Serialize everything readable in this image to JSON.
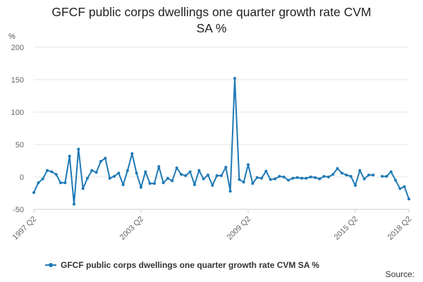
{
  "chart_data": {
    "type": "line",
    "title_lines": [
      "GFCF public corps dwellings one quarter growth rate CVM",
      "SA %"
    ],
    "ylabel": "%",
    "ylim": [
      -50,
      200
    ],
    "yticks": [
      -50,
      0,
      50,
      100,
      150,
      200
    ],
    "grid": true,
    "legend": "bottom",
    "color": "#1f7ab6",
    "categories": [
      "1997 Q2",
      "1997 Q3",
      "1997 Q4",
      "1998 Q1",
      "1998 Q2",
      "1998 Q3",
      "1998 Q4",
      "1999 Q1",
      "1999 Q2",
      "1999 Q3",
      "1999 Q4",
      "2000 Q1",
      "2000 Q2",
      "2000 Q3",
      "2000 Q4",
      "2001 Q1",
      "2001 Q2",
      "2001 Q3",
      "2001 Q4",
      "2002 Q1",
      "2002 Q2",
      "2002 Q3",
      "2002 Q4",
      "2003 Q1",
      "2003 Q2",
      "2003 Q3",
      "2003 Q4",
      "2004 Q1",
      "2004 Q2",
      "2004 Q3",
      "2004 Q4",
      "2005 Q1",
      "2005 Q2",
      "2005 Q3",
      "2005 Q4",
      "2006 Q1",
      "2006 Q2",
      "2006 Q3",
      "2006 Q4",
      "2007 Q1",
      "2007 Q2",
      "2007 Q3",
      "2007 Q4",
      "2008 Q1",
      "2008 Q2",
      "2008 Q3",
      "2008 Q4",
      "2009 Q1",
      "2009 Q2",
      "2009 Q3",
      "2009 Q4",
      "2010 Q1",
      "2010 Q2",
      "2010 Q3",
      "2010 Q4",
      "2011 Q1",
      "2011 Q2",
      "2011 Q3",
      "2011 Q4",
      "2012 Q1",
      "2012 Q2",
      "2012 Q3",
      "2012 Q4",
      "2013 Q1",
      "2013 Q2",
      "2013 Q3",
      "2013 Q4",
      "2014 Q1",
      "2014 Q2",
      "2014 Q3",
      "2014 Q4",
      "2015 Q1",
      "2015 Q2",
      "2015 Q3",
      "2015 Q4",
      "2016 Q1",
      "2016 Q2",
      "2016 Q3",
      "2016 Q4",
      "2017 Q1",
      "2017 Q2",
      "2017 Q3",
      "2017 Q4",
      "2018 Q1",
      "2018 Q2"
    ],
    "xtick_labels": [
      "1997 Q2",
      "2003 Q2",
      "2009 Q2",
      "2015 Q2",
      "2018 Q2"
    ],
    "series": [
      {
        "name": "GFCF public corps dwellings one quarter growth rate CVM SA %",
        "values": [
          -24,
          -9,
          -3,
          10,
          8,
          4,
          -9,
          -9,
          32,
          -42,
          43,
          -18,
          -2,
          10,
          7,
          24,
          29,
          -2,
          1,
          6,
          -12,
          10,
          36,
          6,
          -16,
          8,
          -10,
          -10,
          16,
          -9,
          -2,
          -6,
          14,
          4,
          2,
          8,
          -12,
          10,
          -3,
          3,
          -13,
          2,
          2,
          15,
          -22,
          152,
          -4,
          -8,
          19,
          -10,
          -1,
          -2,
          9,
          -4,
          -3,
          1,
          0,
          -5,
          -2,
          -1,
          -2,
          -2,
          0,
          -1,
          -3,
          1,
          0,
          4,
          13,
          6,
          3,
          1,
          -13,
          10,
          -3,
          3,
          3,
          null,
          1,
          1,
          8,
          -5,
          -18,
          -15,
          -34
        ]
      }
    ]
  },
  "legend": {
    "label": "GFCF public corps dwellings one quarter growth rate CVM SA %"
  },
  "source_label": "Source:"
}
